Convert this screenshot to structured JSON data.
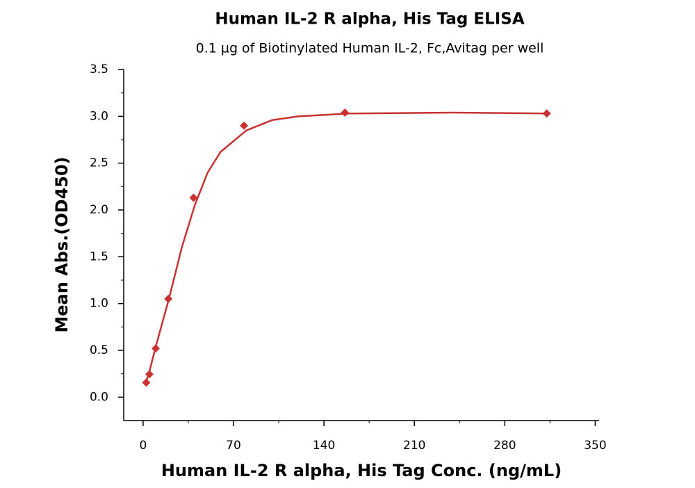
{
  "chart_data": {
    "type": "scatter",
    "title": "Human IL-2 R alpha, His Tag ELISA",
    "subtitle": "0.1 µg of Biotinylated Human IL-2, Fc,Avitag per well",
    "x_label": "Human IL-2 R alpha, His Tag Conc. (ng/mL)",
    "y_label": "Mean Abs.(OD450)",
    "x": [
      2.44,
      4.88,
      9.77,
      19.53,
      39.06,
      78.13,
      156.25,
      312.5
    ],
    "values": [
      0.156,
      0.245,
      0.52,
      1.05,
      2.13,
      2.9,
      3.04,
      3.03
    ],
    "color": "#c83232",
    "fit": {
      "x": [
        2.44,
        5,
        10,
        20,
        30,
        40,
        50,
        60,
        80,
        100,
        120,
        160,
        240,
        312.5
      ],
      "values": [
        0.17,
        0.28,
        0.55,
        1.05,
        1.6,
        2.05,
        2.4,
        2.62,
        2.85,
        2.96,
        3.0,
        3.03,
        3.04,
        3.03
      ]
    },
    "xlim": [
      -15,
      353
    ],
    "ylim": [
      -0.25,
      3.5
    ],
    "xticks": [
      0,
      70,
      140,
      210,
      280,
      350
    ],
    "yticks": [
      {
        "value": 0,
        "label": "0.0"
      },
      0.5,
      {
        "value": 1,
        "label": "1.0"
      },
      1.5,
      {
        "value": 2,
        "label": "2.0"
      },
      2.5,
      {
        "value": 3,
        "label": "3.0"
      },
      3.5
    ]
  }
}
